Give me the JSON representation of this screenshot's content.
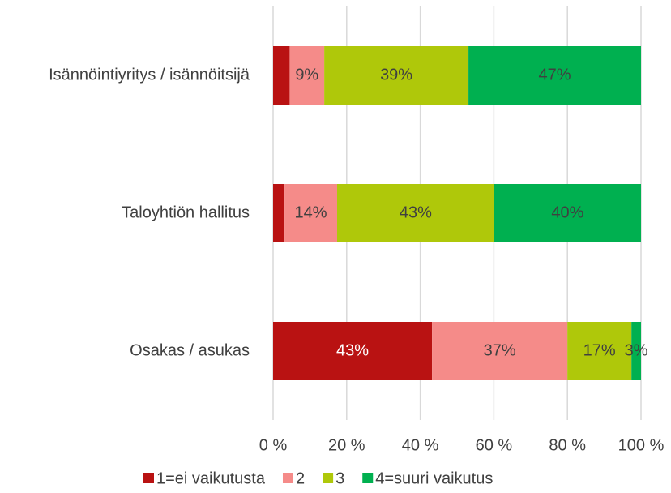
{
  "chart_data": {
    "type": "stacked_barh",
    "categories": [
      "Isännöintiyritys / isännöitsijä",
      "Taloyhtiön hallitus",
      "Osakas / asukas"
    ],
    "series": [
      {
        "name": "1=ei vaikutusta",
        "color": "#b91212",
        "label_color": "#ffffff",
        "values": [
          4.5,
          3.1,
          43.2
        ],
        "value_labels": [
          null,
          null,
          "43%"
        ]
      },
      {
        "name": "2",
        "color": "#f58b89",
        "label_color": "#404040",
        "values": [
          9.4,
          14.3,
          36.8
        ],
        "value_labels": [
          "9%",
          "14%",
          "37%"
        ]
      },
      {
        "name": "3",
        "color": "#afc80a",
        "label_color": "#404040",
        "values": [
          39.2,
          42.7,
          17.4
        ],
        "value_labels": [
          "39%",
          "43%",
          "17%"
        ]
      },
      {
        "name": "4=suuri vaikutus",
        "color": "#00b050",
        "label_color": "#404040",
        "values": [
          46.9,
          39.9,
          2.6
        ],
        "value_labels": [
          "47%",
          "40%",
          "3%"
        ]
      }
    ],
    "xlim": [
      0,
      100
    ],
    "xticks": [
      {
        "value": 0,
        "label": "0 %"
      },
      {
        "value": 20,
        "label": "20 %"
      },
      {
        "value": 40,
        "label": "40 %"
      },
      {
        "value": 60,
        "label": "60 %"
      },
      {
        "value": 80,
        "label": "80 %"
      },
      {
        "value": 100,
        "label": "100 %"
      }
    ],
    "grid": true,
    "legend": "bottom"
  }
}
